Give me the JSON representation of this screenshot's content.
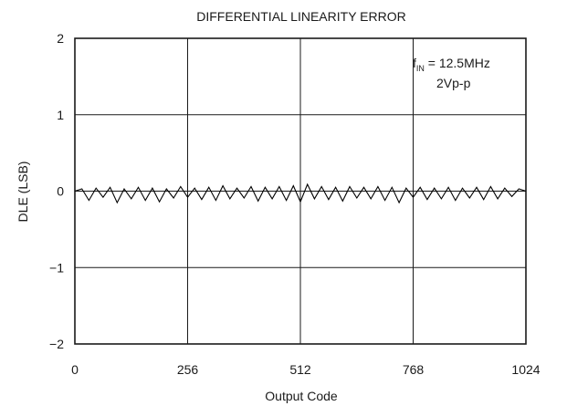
{
  "chart_data": {
    "type": "line",
    "title": "DIFFERENTIAL LINEARITY ERROR",
    "xlabel": "Output Code",
    "ylabel": "DLE (LSB)",
    "xlim": [
      0,
      1024
    ],
    "ylim": [
      -2,
      2
    ],
    "x_ticks": [
      0,
      256,
      512,
      768,
      1024
    ],
    "x_tick_labels": [
      "0",
      "256",
      "512",
      "768",
      "1024"
    ],
    "y_ticks": [
      2,
      1,
      0,
      -1,
      -2
    ],
    "y_tick_labels": [
      "2",
      "1",
      "0",
      "−1",
      "−2"
    ],
    "grid": true,
    "annotation": {
      "f_main": "f",
      "f_sub": "IN",
      "f_value": " = 12.5MHz",
      "line2": "2Vp-p"
    },
    "series": [
      {
        "x": [
          0,
          16,
          32,
          48,
          64,
          80,
          96,
          112,
          128,
          144,
          160,
          176,
          192,
          208,
          224,
          240,
          256,
          272,
          288,
          304,
          320,
          336,
          352,
          368,
          384,
          400,
          416,
          432,
          448,
          464,
          480,
          496,
          512,
          528,
          544,
          560,
          576,
          592,
          608,
          624,
          640,
          656,
          672,
          688,
          704,
          720,
          736,
          752,
          768,
          784,
          800,
          816,
          832,
          848,
          864,
          880,
          896,
          912,
          928,
          944,
          960,
          976,
          992,
          1008,
          1024
        ],
        "values": [
          0.0,
          0.03,
          -0.12,
          0.04,
          -0.08,
          0.05,
          -0.15,
          0.03,
          -0.1,
          0.05,
          -0.12,
          0.04,
          -0.14,
          0.03,
          -0.09,
          0.06,
          -0.08,
          0.04,
          -0.11,
          0.05,
          -0.12,
          0.07,
          -0.1,
          0.04,
          -0.09,
          0.06,
          -0.13,
          0.05,
          -0.1,
          0.06,
          -0.12,
          0.07,
          -0.14,
          0.09,
          -0.1,
          0.06,
          -0.11,
          0.05,
          -0.13,
          0.06,
          -0.09,
          0.05,
          -0.1,
          0.06,
          -0.12,
          0.05,
          -0.15,
          0.04,
          -0.08,
          0.05,
          -0.11,
          0.04,
          -0.1,
          0.05,
          -0.12,
          0.04,
          -0.09,
          0.05,
          -0.11,
          0.06,
          -0.1,
          0.04,
          -0.07,
          0.03,
          0.0
        ]
      }
    ],
    "colors": {
      "trace": "#000000",
      "grid": "#1a1a1a",
      "background": "#ffffff"
    }
  }
}
